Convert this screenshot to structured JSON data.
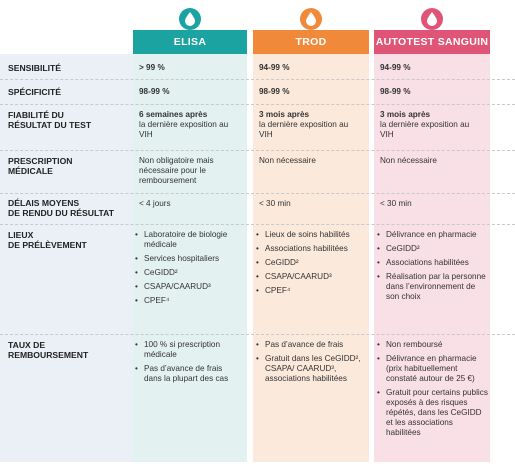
{
  "colors": {
    "elisa": "#1aa3a1",
    "trod": "#f0893a",
    "autotest": "#e05577",
    "elisa_bg": "#e4f1f1",
    "trod_bg": "#fbe9dc",
    "autotest_bg": "#f8e0e6",
    "label_bg": "#e9eef3"
  },
  "headers": {
    "elisa": "ELISA",
    "trod": "TROD",
    "autotest": "AUTOTEST SANGUIN"
  },
  "icons": {
    "drop": "blood-drop-icon"
  },
  "rows": {
    "sensibilite": {
      "label": "SENSIBILITÉ",
      "elisa": "> 99 %",
      "trod": "94-99 %",
      "autotest": "94-99 %"
    },
    "specificite": {
      "label": "SPÉCIFICITÉ",
      "elisa": "98-99 %",
      "trod": "98-99 %",
      "autotest": "98-99 %"
    },
    "fiabilite": {
      "label1": "FIABILITÉ DU",
      "label2": "RÉSULTAT DU TEST",
      "elisa_b": "6 semaines après",
      "elisa": "la dernière exposition au VIH",
      "trod_b": "3 mois après",
      "trod": "la dernière exposition au VIH",
      "autotest_b": "3 mois après",
      "autotest": "la dernière exposition au VIH"
    },
    "prescription": {
      "label1": "PRESCRIPTION",
      "label2": "MÉDICALE",
      "elisa": "Non obligatoire mais nécessaire pour le remboursement",
      "trod": "Non nécessaire",
      "autotest": "Non nécessaire"
    },
    "delais": {
      "label1": "DÉLAIS MOYENS",
      "label2": "DE RENDU DU RÉSULTAT",
      "elisa": "< 4 jours",
      "trod": "< 30 min",
      "autotest": "< 30 min"
    },
    "lieux": {
      "label1": "LIEUX",
      "label2": "DE PRÉLÈVEMENT",
      "elisa": [
        "Laboratoire de biologie médicale",
        "Services hospitaliers",
        "CeGIDD²",
        "CSAPA/CAARUD³",
        "CPEF⁴"
      ],
      "trod": [
        "Lieux de soins habilités",
        "Associations habilitées",
        "CeGIDD²",
        "CSAPA/CAARUD³",
        "CPEF⁴"
      ],
      "autotest": [
        "Délivrance en pharmacie",
        "CeGIDD²",
        "Associations habilitées",
        "Réalisation par la personne dans l’environnement de son choix"
      ]
    },
    "taux": {
      "label1": "TAUX DE",
      "label2": "REMBOURSEMENT",
      "elisa": [
        "100 % si prescription médicale",
        "Pas d’avance de frais dans la plupart des cas"
      ],
      "trod": [
        "Pas d’avance de frais",
        "Gratuit dans les CeGIDD², CSAPA/ CAARUD³, associations habilitées"
      ],
      "autotest": [
        "Non remboursé",
        "Délivrance en pharmacie (prix habituellement constaté autour de 25 €)",
        "Gratuit pour certains publics exposés à des risques répétés, dans les CeGIDD et les associations habilitées"
      ]
    }
  }
}
